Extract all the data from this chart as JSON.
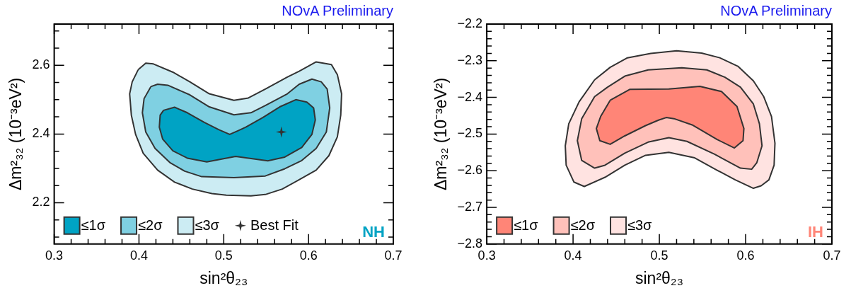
{
  "chart_data": [
    {
      "type": "area",
      "title": "NOvA Preliminary",
      "xlabel": "sin²θ₂₃",
      "ylabel": "Δm²₃₂ (10⁻³eV²)",
      "annotations": [
        "NH"
      ],
      "legend": "bottom left",
      "grid": false,
      "xlim": [
        0.3,
        0.7
      ],
      "ylim": [
        2.08,
        2.72
      ],
      "xticks": [
        0.3,
        {
          "value": 0.32,
          "label": null
        },
        {
          "value": 0.34,
          "label": null
        },
        {
          "value": 0.36,
          "label": null
        },
        {
          "value": 0.38,
          "label": null
        },
        0.4,
        {
          "value": 0.42,
          "label": null
        },
        {
          "value": 0.44,
          "label": null
        },
        {
          "value": 0.46,
          "label": null
        },
        {
          "value": 0.48,
          "label": null
        },
        0.5,
        {
          "value": 0.52,
          "label": null
        },
        {
          "value": 0.54,
          "label": null
        },
        {
          "value": 0.56,
          "label": null
        },
        {
          "value": 0.58,
          "label": null
        },
        0.6,
        {
          "value": 0.62,
          "label": null
        },
        {
          "value": 0.64,
          "label": null
        },
        {
          "value": 0.66,
          "label": null
        },
        {
          "value": 0.68,
          "label": null
        },
        0.7
      ],
      "yticks": [
        {
          "value": 2.1,
          "label": null
        },
        {
          "value": 2.15,
          "label": null
        },
        2.2,
        {
          "value": 2.25,
          "label": null
        },
        {
          "value": 2.3,
          "label": null
        },
        {
          "value": 2.35,
          "label": null
        },
        2.4,
        {
          "value": 2.45,
          "label": null
        },
        {
          "value": 2.5,
          "label": null
        },
        {
          "value": 2.55,
          "label": null
        },
        2.6,
        {
          "value": 2.65,
          "label": null
        },
        {
          "value": 2.7,
          "label": null
        }
      ],
      "series": [
        {
          "name": "≤1σ",
          "color": "#00a3c4",
          "x": [
            0.429,
            0.442,
            0.457,
            0.477,
            0.494,
            0.507,
            0.517,
            0.526,
            0.546,
            0.566,
            0.585,
            0.598,
            0.606,
            0.608,
            0.604,
            0.592,
            0.572,
            0.552,
            0.514,
            0.48,
            0.457,
            0.44,
            0.428,
            0.424,
            0.425,
            0.429
          ],
          "values": [
            2.469,
            2.478,
            2.462,
            2.434,
            2.413,
            2.399,
            2.41,
            2.42,
            2.448,
            2.479,
            2.5,
            2.493,
            2.476,
            2.441,
            2.399,
            2.361,
            2.333,
            2.322,
            2.335,
            2.319,
            2.33,
            2.351,
            2.385,
            2.42,
            2.455,
            2.469
          ]
        },
        {
          "name": "≤2σ",
          "color": "#7fd0e2",
          "x": [
            0.414,
            0.422,
            0.434,
            0.46,
            0.483,
            0.512,
            0.532,
            0.549,
            0.575,
            0.589,
            0.604,
            0.615,
            0.622,
            0.625,
            0.621,
            0.609,
            0.592,
            0.572,
            0.549,
            0.512,
            0.474,
            0.454,
            0.437,
            0.419,
            0.408,
            0.404,
            0.406,
            0.414
          ],
          "values": [
            2.538,
            2.545,
            2.542,
            2.514,
            2.479,
            2.456,
            2.462,
            2.483,
            2.517,
            2.545,
            2.56,
            2.552,
            2.531,
            2.476,
            2.406,
            2.358,
            2.323,
            2.299,
            2.278,
            2.273,
            2.276,
            2.292,
            2.316,
            2.358,
            2.406,
            2.462,
            2.503,
            2.538
          ]
        },
        {
          "name": "≤3σ",
          "color": "#ccecf3",
          "x": [
            0.399,
            0.408,
            0.417,
            0.44,
            0.46,
            0.483,
            0.512,
            0.529,
            0.549,
            0.575,
            0.589,
            0.609,
            0.627,
            0.634,
            0.639,
            0.638,
            0.634,
            0.624,
            0.609,
            0.589,
            0.569,
            0.549,
            0.532,
            0.503,
            0.486,
            0.463,
            0.442,
            0.422,
            0.405,
            0.396,
            0.391,
            0.389,
            0.392,
            0.399
          ],
          "values": [
            2.587,
            2.606,
            2.604,
            2.58,
            2.552,
            2.517,
            2.498,
            2.505,
            2.531,
            2.566,
            2.583,
            2.61,
            2.602,
            2.573,
            2.517,
            2.455,
            2.392,
            2.337,
            2.295,
            2.267,
            2.24,
            2.224,
            2.22,
            2.222,
            2.227,
            2.24,
            2.26,
            2.295,
            2.344,
            2.399,
            2.455,
            2.517,
            2.552,
            2.587
          ]
        },
        {
          "name": "Best Fit",
          "type": "scatter",
          "marker": "star",
          "color": "#333333",
          "x": [
            0.568
          ],
          "values": [
            2.406
          ]
        }
      ]
    },
    {
      "type": "area",
      "title": "NOvA Preliminary",
      "xlabel": "sin²θ₂₃",
      "ylabel": "Δm²₃₂ (10⁻³eV²)",
      "annotations": [
        "IH"
      ],
      "legend": "bottom left",
      "grid": false,
      "xlim": [
        0.3,
        0.7
      ],
      "ylim": [
        -2.8,
        -2.2
      ],
      "xticks": [
        0.3,
        {
          "value": 0.32,
          "label": null
        },
        {
          "value": 0.34,
          "label": null
        },
        {
          "value": 0.36,
          "label": null
        },
        {
          "value": 0.38,
          "label": null
        },
        0.4,
        {
          "value": 0.42,
          "label": null
        },
        {
          "value": 0.44,
          "label": null
        },
        {
          "value": 0.46,
          "label": null
        },
        {
          "value": 0.48,
          "label": null
        },
        0.5,
        {
          "value": 0.52,
          "label": null
        },
        {
          "value": 0.54,
          "label": null
        },
        {
          "value": 0.56,
          "label": null
        },
        {
          "value": 0.58,
          "label": null
        },
        0.6,
        {
          "value": 0.62,
          "label": null
        },
        {
          "value": 0.64,
          "label": null
        },
        {
          "value": 0.66,
          "label": null
        },
        {
          "value": 0.68,
          "label": null
        },
        0.7
      ],
      "yticks": [
        {
          "value": -2.8,
          "label": "−2.8"
        },
        {
          "value": -2.78,
          "label": null
        },
        {
          "value": -2.76,
          "label": null
        },
        {
          "value": -2.74,
          "label": null
        },
        {
          "value": -2.72,
          "label": null
        },
        {
          "value": -2.7,
          "label": "−2.7"
        },
        {
          "value": -2.68,
          "label": null
        },
        {
          "value": -2.66,
          "label": null
        },
        {
          "value": -2.64,
          "label": null
        },
        {
          "value": -2.62,
          "label": null
        },
        {
          "value": -2.6,
          "label": "−2.6"
        },
        {
          "value": -2.58,
          "label": null
        },
        {
          "value": -2.56,
          "label": null
        },
        {
          "value": -2.54,
          "label": null
        },
        {
          "value": -2.52,
          "label": null
        },
        {
          "value": -2.5,
          "label": "−2.5"
        },
        {
          "value": -2.48,
          "label": null
        },
        {
          "value": -2.46,
          "label": null
        },
        {
          "value": -2.44,
          "label": null
        },
        {
          "value": -2.42,
          "label": null
        },
        {
          "value": -2.4,
          "label": "−2.4"
        },
        {
          "value": -2.38,
          "label": null
        },
        {
          "value": -2.36,
          "label": null
        },
        {
          "value": -2.34,
          "label": null
        },
        {
          "value": -2.32,
          "label": null
        },
        {
          "value": -2.3,
          "label": "−2.3"
        },
        {
          "value": -2.28,
          "label": null
        },
        {
          "value": -2.26,
          "label": null
        },
        {
          "value": -2.24,
          "label": null
        },
        {
          "value": -2.22,
          "label": null
        },
        {
          "value": -2.2,
          "label": "−2.2"
        }
      ],
      "series": [
        {
          "name": "≤1σ",
          "color": "#ff8577",
          "x": [
            0.443,
            0.466,
            0.511,
            0.547,
            0.572,
            0.59,
            0.598,
            0.597,
            0.587,
            0.567,
            0.538,
            0.517,
            0.508,
            0.499,
            0.484,
            0.46,
            0.443,
            0.431,
            0.427,
            0.432,
            0.443
          ],
          "values": [
            -2.408,
            -2.378,
            -2.377,
            -2.37,
            -2.384,
            -2.425,
            -2.485,
            -2.518,
            -2.538,
            -2.515,
            -2.475,
            -2.458,
            -2.455,
            -2.462,
            -2.477,
            -2.505,
            -2.528,
            -2.518,
            -2.485,
            -2.452,
            -2.408
          ]
        },
        {
          "name": "≤2σ",
          "color": "#ffc1ba",
          "x": [
            0.44,
            0.46,
            0.487,
            0.526,
            0.555,
            0.576,
            0.594,
            0.609,
            0.616,
            0.619,
            0.613,
            0.607,
            0.594,
            0.564,
            0.532,
            0.511,
            0.487,
            0.46,
            0.437,
            0.425,
            0.41,
            0.405,
            0.41,
            0.425,
            0.44
          ],
          "values": [
            -2.372,
            -2.342,
            -2.325,
            -2.319,
            -2.325,
            -2.345,
            -2.372,
            -2.418,
            -2.472,
            -2.532,
            -2.578,
            -2.596,
            -2.593,
            -2.555,
            -2.52,
            -2.51,
            -2.522,
            -2.552,
            -2.585,
            -2.593,
            -2.572,
            -2.518,
            -2.458,
            -2.398,
            -2.372
          ]
        },
        {
          "name": "≤3σ",
          "color": "#ffe3e1",
          "x": [
            0.425,
            0.443,
            0.463,
            0.49,
            0.52,
            0.549,
            0.57,
            0.591,
            0.609,
            0.621,
            0.63,
            0.634,
            0.633,
            0.627,
            0.618,
            0.609,
            0.588,
            0.564,
            0.541,
            0.511,
            0.484,
            0.46,
            0.437,
            0.413,
            0.401,
            0.392,
            0.391,
            0.395,
            0.407,
            0.425
          ],
          "values": [
            -2.352,
            -2.318,
            -2.292,
            -2.28,
            -2.273,
            -2.279,
            -2.292,
            -2.315,
            -2.355,
            -2.398,
            -2.452,
            -2.525,
            -2.585,
            -2.625,
            -2.641,
            -2.648,
            -2.625,
            -2.595,
            -2.565,
            -2.55,
            -2.558,
            -2.585,
            -2.618,
            -2.643,
            -2.631,
            -2.585,
            -2.532,
            -2.472,
            -2.412,
            -2.352
          ]
        }
      ]
    }
  ]
}
